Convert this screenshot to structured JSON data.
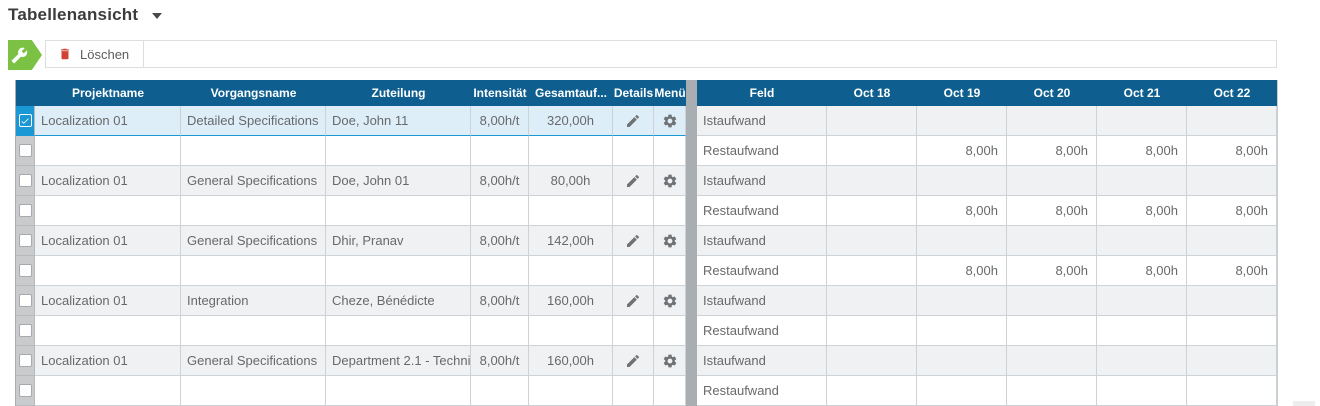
{
  "title": {
    "label": "Tabellenansicht"
  },
  "toolbar": {
    "delete_label": "Löschen"
  },
  "colors": {
    "header_blue": "#0e5f90",
    "selection_blue": "#1a97d5",
    "selected_row_bg": "#ddeef8",
    "stripe_gray": "#f0f1f2",
    "accent_green": "#7bc143",
    "delete_red": "#cf4436"
  },
  "left_table": {
    "columns": [
      {
        "key": "check",
        "label": ""
      },
      {
        "key": "projektname",
        "label": "Projektname"
      },
      {
        "key": "vorgangsname",
        "label": "Vorgangsname"
      },
      {
        "key": "zuteilung",
        "label": "Zuteilung"
      },
      {
        "key": "intensitaet",
        "label": "Intensität"
      },
      {
        "key": "gesamtaufwand",
        "label": "Gesamtauf..."
      },
      {
        "key": "details",
        "label": "Details"
      },
      {
        "key": "menue",
        "label": "Menü"
      }
    ],
    "rows": [
      {
        "selected": true,
        "checked": true,
        "projektname": "Localization 01",
        "vorgangsname": "Detailed Specifications",
        "zuteilung": "Doe, John 11",
        "intensitaet": "8,00h/t",
        "gesamtaufwand": "320,00h",
        "has_icons": true
      },
      {
        "selected": false,
        "checked": false,
        "projektname": "",
        "vorgangsname": "",
        "zuteilung": "",
        "intensitaet": "",
        "gesamtaufwand": "",
        "has_icons": false
      },
      {
        "selected": false,
        "checked": false,
        "projektname": "Localization 01",
        "vorgangsname": "General Specifications",
        "zuteilung": "Doe, John 01",
        "intensitaet": "8,00h/t",
        "gesamtaufwand": "80,00h",
        "has_icons": true
      },
      {
        "selected": false,
        "checked": false,
        "projektname": "",
        "vorgangsname": "",
        "zuteilung": "",
        "intensitaet": "",
        "gesamtaufwand": "",
        "has_icons": false
      },
      {
        "selected": false,
        "checked": false,
        "projektname": "Localization 01",
        "vorgangsname": "General Specifications",
        "zuteilung": "Dhir, Pranav",
        "intensitaet": "8,00h/t",
        "gesamtaufwand": "142,00h",
        "has_icons": true
      },
      {
        "selected": false,
        "checked": false,
        "projektname": "",
        "vorgangsname": "",
        "zuteilung": "",
        "intensitaet": "",
        "gesamtaufwand": "",
        "has_icons": false
      },
      {
        "selected": false,
        "checked": false,
        "projektname": "Localization 01",
        "vorgangsname": "Integration",
        "zuteilung": "Cheze, Bénédicte",
        "intensitaet": "8,00h/t",
        "gesamtaufwand": "160,00h",
        "has_icons": true
      },
      {
        "selected": false,
        "checked": false,
        "projektname": "",
        "vorgangsname": "",
        "zuteilung": "",
        "intensitaet": "",
        "gesamtaufwand": "",
        "has_icons": false
      },
      {
        "selected": false,
        "checked": false,
        "projektname": "Localization 01",
        "vorgangsname": "General Specifications",
        "zuteilung": "Department 2.1 - Techni...",
        "intensitaet": "8,00h/t",
        "gesamtaufwand": "160,00h",
        "has_icons": true
      },
      {
        "selected": false,
        "checked": false,
        "projektname": "",
        "vorgangsname": "",
        "zuteilung": "",
        "intensitaet": "",
        "gesamtaufwand": "",
        "has_icons": false
      }
    ]
  },
  "right_table": {
    "columns": [
      {
        "key": "feld",
        "label": "Feld"
      },
      {
        "key": "day",
        "label": "Oct 18"
      },
      {
        "key": "day",
        "label": "Oct 19"
      },
      {
        "key": "day",
        "label": "Oct 20"
      },
      {
        "key": "day",
        "label": "Oct 21"
      },
      {
        "key": "day",
        "label": "Oct 22"
      }
    ],
    "rows": [
      {
        "feld": "Istaufwand",
        "values": [
          "",
          "",
          "",
          "",
          ""
        ]
      },
      {
        "feld": "Restaufwand",
        "values": [
          "",
          "8,00h",
          "8,00h",
          "8,00h",
          "8,00h"
        ]
      },
      {
        "feld": "Istaufwand",
        "values": [
          "",
          "",
          "",
          "",
          ""
        ]
      },
      {
        "feld": "Restaufwand",
        "values": [
          "",
          "8,00h",
          "8,00h",
          "8,00h",
          "8,00h"
        ]
      },
      {
        "feld": "Istaufwand",
        "values": [
          "",
          "",
          "",
          "",
          ""
        ]
      },
      {
        "feld": "Restaufwand",
        "values": [
          "",
          "8,00h",
          "8,00h",
          "8,00h",
          "8,00h"
        ]
      },
      {
        "feld": "Istaufwand",
        "values": [
          "",
          "",
          "",
          "",
          ""
        ]
      },
      {
        "feld": "Restaufwand",
        "values": [
          "",
          "",
          "",
          "",
          ""
        ]
      },
      {
        "feld": "Istaufwand",
        "values": [
          "",
          "",
          "",
          "",
          ""
        ]
      },
      {
        "feld": "Restaufwand",
        "values": [
          "",
          "",
          "",
          "",
          ""
        ]
      }
    ]
  }
}
